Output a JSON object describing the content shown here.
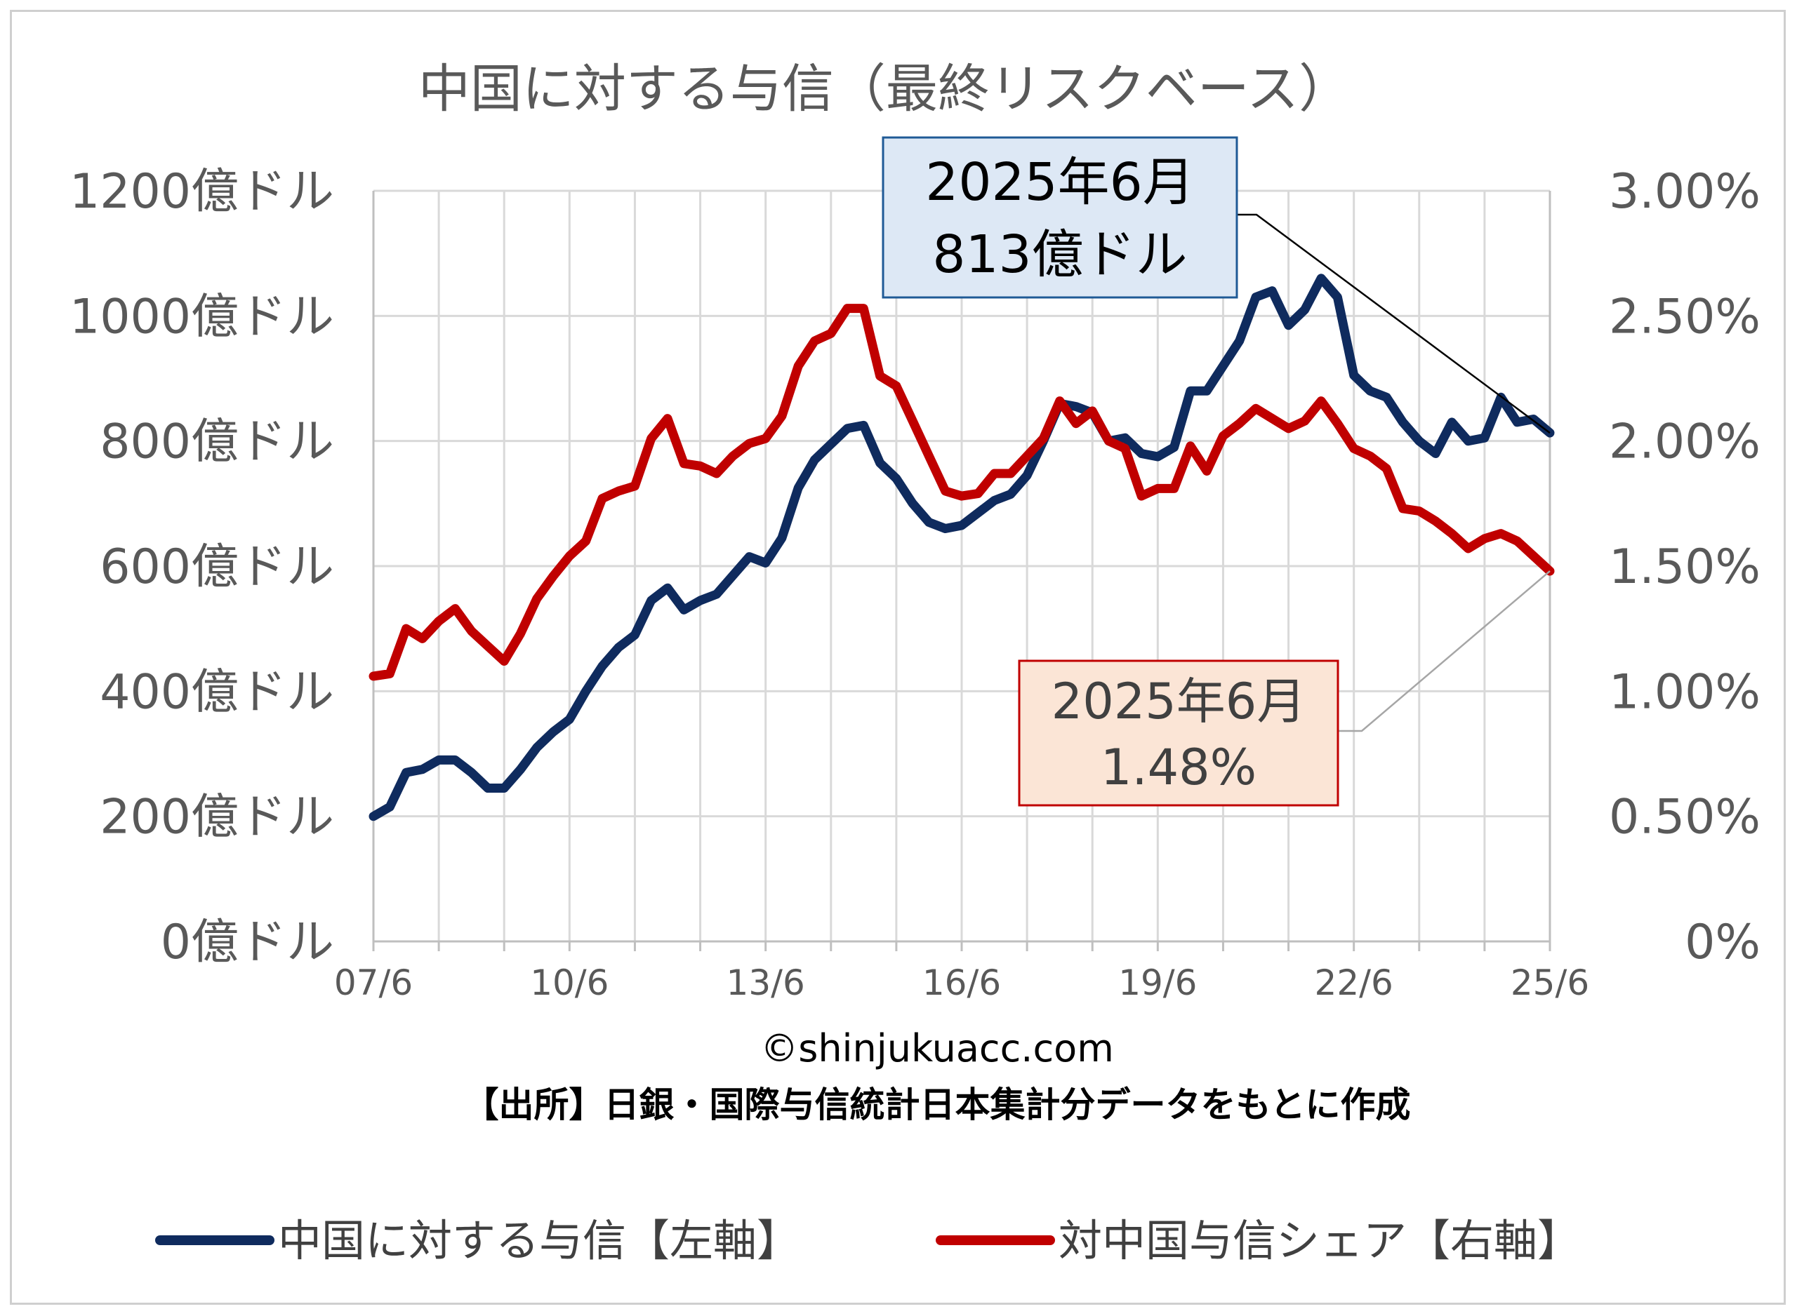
{
  "chart_data": {
    "type": "line",
    "title": "中国に対する与信（最終リスクベース）",
    "x_ticks": [
      "07/6",
      "10/6",
      "13/6",
      "16/6",
      "19/6",
      "22/6",
      "25/6"
    ],
    "y_left_ticks": [
      "0億ドル",
      "200億ドル",
      "400億ドル",
      "600億ドル",
      "800億ドル",
      "1000億ドル",
      "1200億ドル"
    ],
    "y_left_range": [
      0,
      1200
    ],
    "y_right_ticks": [
      "0%",
      "0.50%",
      "1.00%",
      "1.50%",
      "2.00%",
      "2.50%",
      "3.00%"
    ],
    "y_right_range": [
      0,
      3.0
    ],
    "x_range": [
      2007.5,
      2025.5
    ],
    "series": [
      {
        "name": "中国に対する与信【左軸】",
        "axis": "left",
        "color": "#0f2b5e",
        "x": [
          2007.5,
          2007.75,
          2008.0,
          2008.25,
          2008.5,
          2008.75,
          2009.0,
          2009.25,
          2009.5,
          2009.75,
          2010.0,
          2010.25,
          2010.5,
          2010.75,
          2011.0,
          2011.25,
          2011.5,
          2011.75,
          2012.0,
          2012.25,
          2012.5,
          2012.75,
          2013.0,
          2013.25,
          2013.5,
          2013.75,
          2014.0,
          2014.25,
          2014.5,
          2014.75,
          2015.0,
          2015.25,
          2015.5,
          2015.75,
          2016.0,
          2016.25,
          2016.5,
          2016.75,
          2017.0,
          2017.25,
          2017.5,
          2017.75,
          2018.0,
          2018.25,
          2018.5,
          2018.75,
          2019.0,
          2019.25,
          2019.5,
          2019.75,
          2020.0,
          2020.25,
          2020.5,
          2020.75,
          2021.0,
          2021.25,
          2021.5,
          2021.75,
          2022.0,
          2022.25,
          2022.5,
          2022.75,
          2023.0,
          2023.25,
          2023.5,
          2023.75,
          2024.0,
          2024.25,
          2024.5,
          2024.75,
          2025.0,
          2025.25,
          2025.5
        ],
        "values": [
          200,
          215,
          270,
          275,
          290,
          290,
          270,
          245,
          245,
          275,
          310,
          335,
          355,
          400,
          440,
          470,
          490,
          545,
          565,
          530,
          545,
          555,
          585,
          615,
          605,
          645,
          725,
          770,
          795,
          820,
          825,
          765,
          740,
          700,
          670,
          660,
          665,
          685,
          705,
          715,
          745,
          800,
          860,
          855,
          845,
          800,
          805,
          780,
          775,
          790,
          880,
          880,
          920,
          960,
          1030,
          1040,
          985,
          1010,
          1060,
          1030,
          905,
          880,
          870,
          830,
          800,
          780,
          830,
          800,
          805,
          870,
          830,
          835,
          813
        ]
      },
      {
        "name": "対中国与信シェア【右軸】",
        "axis": "right",
        "color": "#c00000",
        "x": [
          2007.5,
          2007.75,
          2008.0,
          2008.25,
          2008.5,
          2008.75,
          2009.0,
          2009.25,
          2009.5,
          2009.75,
          2010.0,
          2010.25,
          2010.5,
          2010.75,
          2011.0,
          2011.25,
          2011.5,
          2011.75,
          2012.0,
          2012.25,
          2012.5,
          2012.75,
          2013.0,
          2013.25,
          2013.5,
          2013.75,
          2014.0,
          2014.25,
          2014.5,
          2014.75,
          2015.0,
          2015.25,
          2015.5,
          2015.75,
          2016.0,
          2016.25,
          2016.5,
          2016.75,
          2017.0,
          2017.25,
          2017.5,
          2017.75,
          2018.0,
          2018.25,
          2018.5,
          2018.75,
          2019.0,
          2019.25,
          2019.5,
          2019.75,
          2020.0,
          2020.25,
          2020.5,
          2020.75,
          2021.0,
          2021.25,
          2021.5,
          2021.75,
          2022.0,
          2022.25,
          2022.5,
          2022.75,
          2023.0,
          2023.25,
          2023.5,
          2023.75,
          2024.0,
          2024.25,
          2024.5,
          2024.75,
          2025.0,
          2025.25,
          2025.5
        ],
        "values": [
          1.06,
          1.07,
          1.25,
          1.21,
          1.28,
          1.33,
          1.24,
          1.18,
          1.12,
          1.23,
          1.37,
          1.46,
          1.54,
          1.6,
          1.77,
          1.8,
          1.82,
          2.01,
          2.09,
          1.91,
          1.9,
          1.87,
          1.94,
          1.99,
          2.01,
          2.1,
          2.3,
          2.4,
          2.43,
          2.53,
          2.53,
          2.26,
          2.22,
          2.08,
          1.94,
          1.8,
          1.78,
          1.79,
          1.87,
          1.87,
          1.94,
          2.01,
          2.16,
          2.07,
          2.12,
          2.0,
          1.97,
          1.78,
          1.81,
          1.81,
          1.98,
          1.88,
          2.02,
          2.07,
          2.13,
          2.09,
          2.05,
          2.08,
          2.16,
          2.07,
          1.97,
          1.94,
          1.89,
          1.73,
          1.72,
          1.68,
          1.63,
          1.57,
          1.61,
          1.63,
          1.6,
          1.54,
          1.48
        ]
      }
    ],
    "annotations": [
      {
        "series": "中国に対する与信【左軸】",
        "line1": "2025年6月",
        "line2": "813億ドル"
      },
      {
        "series": "対中国与信シェア【右軸】",
        "line1": "2025年6月",
        "line2": "1.48%"
      }
    ],
    "grid": true,
    "legend_position": "bottom"
  },
  "credit": "©shinjukuacc.com",
  "source": "【出所】日銀・国際与信統計日本集計分データをもとに作成",
  "legend": [
    {
      "label": "中国に対する与信【左軸】",
      "color": "#0f2b5e"
    },
    {
      "label": "対中国与信シェア【右軸】",
      "color": "#c00000"
    }
  ]
}
